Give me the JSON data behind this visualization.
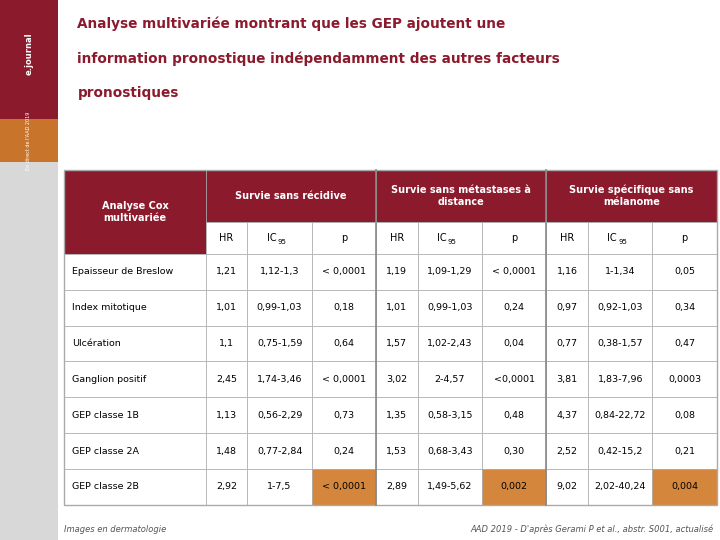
{
  "title_line1": "Analyse multivariée montrant que les GEP ajoutent une",
  "title_line2": "information pronostique indépendamment des autres facteurs",
  "title_line3": "pronostiques",
  "title_color": "#8B1A2C",
  "footer_left": "Images en dermatologie",
  "footer_right": "AAD 2019 - D'après Gerami P et al., abstr. S001, actualisé",
  "sidebar_maroon_color": "#8B1A2C",
  "sidebar_orange_color": "#C8742A",
  "sidebar_bg_color": "#F0F0F0",
  "col_groups": [
    {
      "label": "Survie sans récidive",
      "span": 3
    },
    {
      "label": "Survie sans métastases à\ndistance",
      "span": 3
    },
    {
      "label": "Survie spécifique sans\nmélanome",
      "span": 3
    }
  ],
  "sub_headers": [
    "HR",
    "IC95",
    "p",
    "HR",
    "IC95",
    "p",
    "HR",
    "IC95",
    "p"
  ],
  "row_header": "Analyse Cox\nmultivariée",
  "header_bg": "#8B1A2C",
  "header_text_color": "#FFFFFF",
  "highlight_color": "#D4873C",
  "border_color": "#AAAAAA",
  "rows": [
    {
      "label": "Epaisseur de Breslow",
      "data": [
        "1,21",
        "1,12-1,3",
        "< 0,0001",
        "1,19",
        "1,09-1,29",
        "< 0,0001",
        "1,16",
        "1-1,34",
        "0,05"
      ],
      "highlight": [
        false,
        false,
        false,
        false,
        false,
        false,
        false,
        false,
        false
      ]
    },
    {
      "label": "Index mitotique",
      "data": [
        "1,01",
        "0,99-1,03",
        "0,18",
        "1,01",
        "0,99-1,03",
        "0,24",
        "0,97",
        "0,92-1,03",
        "0,34"
      ],
      "highlight": [
        false,
        false,
        false,
        false,
        false,
        false,
        false,
        false,
        false
      ]
    },
    {
      "label": "Ulcération",
      "data": [
        "1,1",
        "0,75-1,59",
        "0,64",
        "1,57",
        "1,02-2,43",
        "0,04",
        "0,77",
        "0,38-1,57",
        "0,47"
      ],
      "highlight": [
        false,
        false,
        false,
        false,
        false,
        false,
        false,
        false,
        false
      ]
    },
    {
      "label": "Ganglion positif",
      "data": [
        "2,45",
        "1,74-3,46",
        "< 0,0001",
        "3,02",
        "2-4,57",
        "<0,0001",
        "3,81",
        "1,83-7,96",
        "0,0003"
      ],
      "highlight": [
        false,
        false,
        false,
        false,
        false,
        false,
        false,
        false,
        false
      ]
    },
    {
      "label": "GEP classe 1B",
      "data": [
        "1,13",
        "0,56-2,29",
        "0,73",
        "1,35",
        "0,58-3,15",
        "0,48",
        "4,37",
        "0,84-22,72",
        "0,08"
      ],
      "highlight": [
        false,
        false,
        false,
        false,
        false,
        false,
        false,
        false,
        false
      ]
    },
    {
      "label": "GEP classe 2A",
      "data": [
        "1,48",
        "0,77-2,84",
        "0,24",
        "1,53",
        "0,68-3,43",
        "0,30",
        "2,52",
        "0,42-15,2",
        "0,21"
      ],
      "highlight": [
        false,
        false,
        false,
        false,
        false,
        false,
        false,
        false,
        false
      ]
    },
    {
      "label": "GEP classe 2B",
      "data": [
        "2,92",
        "1-7,5",
        "< 0,0001",
        "2,89",
        "1,49-5,62",
        "0,002",
        "9,02",
        "2,02-40,24",
        "0,004"
      ],
      "highlight": [
        false,
        false,
        true,
        false,
        false,
        true,
        false,
        false,
        true
      ]
    }
  ]
}
